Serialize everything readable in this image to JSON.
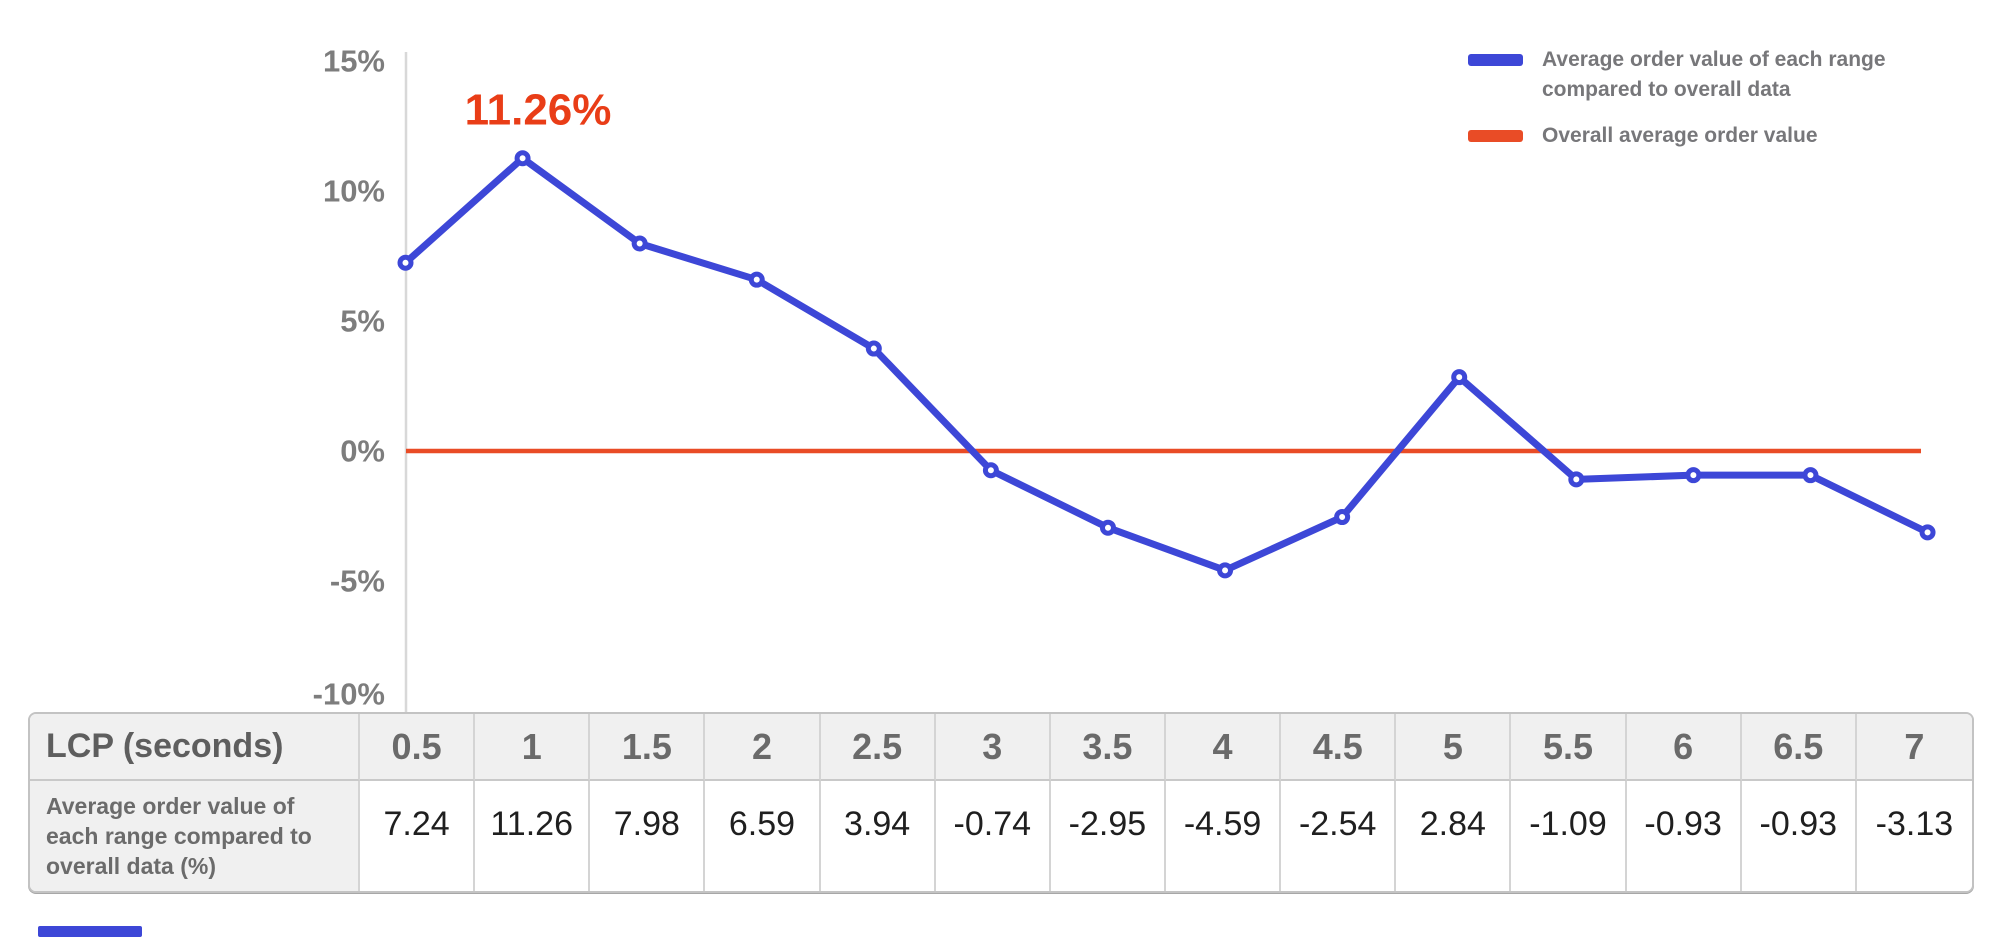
{
  "chart_data": {
    "type": "line",
    "x": [
      0.5,
      1,
      1.5,
      2,
      2.5,
      3,
      3.5,
      4,
      4.5,
      5,
      5.5,
      6,
      6.5,
      7
    ],
    "xlabel": "LCP (seconds)",
    "ylabel": "",
    "title": "",
    "ylim": [
      -10,
      15
    ],
    "grid": false,
    "legend_position": "top-right",
    "y_tick_labels": [
      "15%",
      "10%",
      "5%",
      "0%",
      "-5%",
      "-10%"
    ],
    "y_tick_values": [
      15,
      10,
      5,
      0,
      -5,
      -10
    ],
    "series": [
      {
        "name": "Average order value of each range compared to overall data",
        "values": [
          7.24,
          11.26,
          7.98,
          6.59,
          3.94,
          -0.74,
          -2.95,
          -4.59,
          -2.54,
          2.84,
          -1.09,
          -0.93,
          -0.93,
          -3.13
        ],
        "color": "#3d47d7",
        "markers": true
      },
      {
        "name": "Overall average order value",
        "values": [
          0,
          0,
          0,
          0,
          0,
          0,
          0,
          0,
          0,
          0,
          0,
          0,
          0,
          0
        ],
        "color": "#e94c26",
        "markers": false
      }
    ],
    "annotation": {
      "text": "11.26%",
      "color": "#e93d17",
      "at_x": 1,
      "at_y": 11.26
    }
  },
  "legend": {
    "items": [
      {
        "label": "Average order value of each range compared to overall data",
        "color": "#3d47d7"
      },
      {
        "label": "Overall average order value",
        "color": "#e94c26"
      }
    ]
  },
  "table": {
    "corner_label": "LCP (seconds)",
    "row_label": "Average order value of each range compared to overall data (%)",
    "columns": [
      "0.5",
      "1",
      "1.5",
      "2",
      "2.5",
      "3",
      "3.5",
      "4",
      "4.5",
      "5",
      "5.5",
      "6",
      "6.5",
      "7"
    ],
    "values": [
      "7.24",
      "11.26",
      "7.98",
      "6.59",
      "3.94",
      "-0.74",
      "-2.95",
      "-4.59",
      "-2.54",
      "2.84",
      "-1.09",
      "-0.93",
      "-0.93",
      "-3.13"
    ]
  },
  "colors": {
    "series_blue": "#3d47d7",
    "baseline_red": "#e94c26",
    "annotation_red": "#e93d17",
    "axis_text": "#7d7d7d",
    "axis_line": "#d8d8d8",
    "partial_bar": "#3d47d7"
  }
}
